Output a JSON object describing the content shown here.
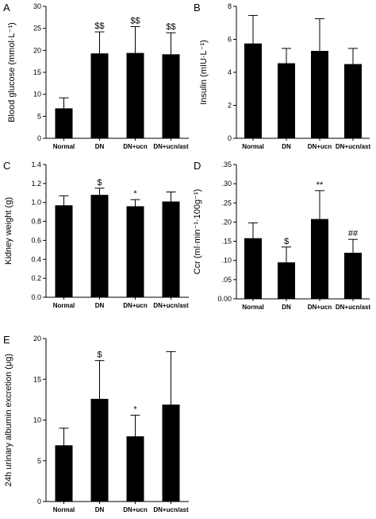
{
  "chart_data": [
    {
      "panel": "A",
      "type": "bar",
      "categories": [
        "Normal",
        "DN",
        "DN+ucn",
        "DN+ucn/ast"
      ],
      "values": [
        6.8,
        19.3,
        19.4,
        19.1
      ],
      "errors": [
        2.4,
        4.9,
        6.0,
        4.9
      ],
      "annotations": [
        "",
        "$$",
        "$$",
        "$$"
      ],
      "ylabel": "Blood glucose (mmol·L⁻¹)",
      "ylim": [
        0,
        30
      ],
      "yticks": [
        0,
        5,
        10,
        15,
        20,
        25,
        30
      ],
      "ytick_labels": [
        "0",
        "5",
        "10",
        "15",
        "20",
        "25",
        "30"
      ]
    },
    {
      "panel": "B",
      "type": "bar",
      "categories": [
        "Normal",
        "DN",
        "DN+ucn",
        "DN+ucn/ast"
      ],
      "values": [
        5.75,
        4.55,
        5.3,
        4.5
      ],
      "errors": [
        1.7,
        0.9,
        1.95,
        0.95
      ],
      "annotations": [
        "",
        "",
        "",
        ""
      ],
      "ylabel": "Insulin (mIU·L⁻¹)",
      "ylim": [
        0,
        8
      ],
      "yticks": [
        0,
        2,
        4,
        6,
        8
      ],
      "ytick_labels": [
        "0",
        "2",
        "4",
        "6",
        "8"
      ]
    },
    {
      "panel": "C",
      "type": "bar",
      "categories": [
        "Normal",
        "DN",
        "DN+ucn",
        "DN+ucn/ast"
      ],
      "values": [
        0.97,
        1.08,
        0.96,
        1.01
      ],
      "errors": [
        0.1,
        0.07,
        0.07,
        0.1
      ],
      "annotations": [
        "",
        "$",
        "*",
        ""
      ],
      "ylabel": "Kidney weight (g)",
      "ylim": [
        0,
        1.4
      ],
      "yticks": [
        0,
        0.2,
        0.4,
        0.6,
        0.8,
        1.0,
        1.2,
        1.4
      ],
      "ytick_labels": [
        "0.0",
        "0.2",
        "0.4",
        "0.6",
        "0.8",
        "1.0",
        "1.2",
        "1.4"
      ]
    },
    {
      "panel": "D",
      "type": "bar",
      "categories": [
        "Normal",
        "DN",
        "DN+ucn",
        "DN+ucn/ast"
      ],
      "values": [
        0.158,
        0.095,
        0.208,
        0.12
      ],
      "errors": [
        0.04,
        0.04,
        0.074,
        0.035
      ],
      "annotations": [
        "",
        "$",
        "**",
        "##"
      ],
      "ylabel": "Ccr (ml·min⁻¹·100g⁻¹)",
      "ylim": [
        0,
        0.35
      ],
      "yticks": [
        0,
        0.05,
        0.1,
        0.15,
        0.2,
        0.25,
        0.3,
        0.35
      ],
      "ytick_labels": [
        "0.00",
        ".05",
        ".10",
        ".15",
        ".20",
        ".25",
        ".30",
        ".35"
      ]
    },
    {
      "panel": "E",
      "type": "bar",
      "categories": [
        "Normal",
        "DN",
        "DN+ucn",
        "DN+ucn/ast"
      ],
      "values": [
        6.9,
        12.6,
        8.0,
        11.9
      ],
      "errors": [
        2.1,
        4.7,
        2.6,
        6.5
      ],
      "annotations": [
        "",
        "$",
        "*",
        ""
      ],
      "ylabel": "24h urinary albumin excretion (μg)",
      "ylim": [
        0,
        20
      ],
      "yticks": [
        0,
        5,
        10,
        15,
        20
      ],
      "ytick_labels": [
        "0",
        "5",
        "10",
        "15",
        "20"
      ]
    }
  ]
}
